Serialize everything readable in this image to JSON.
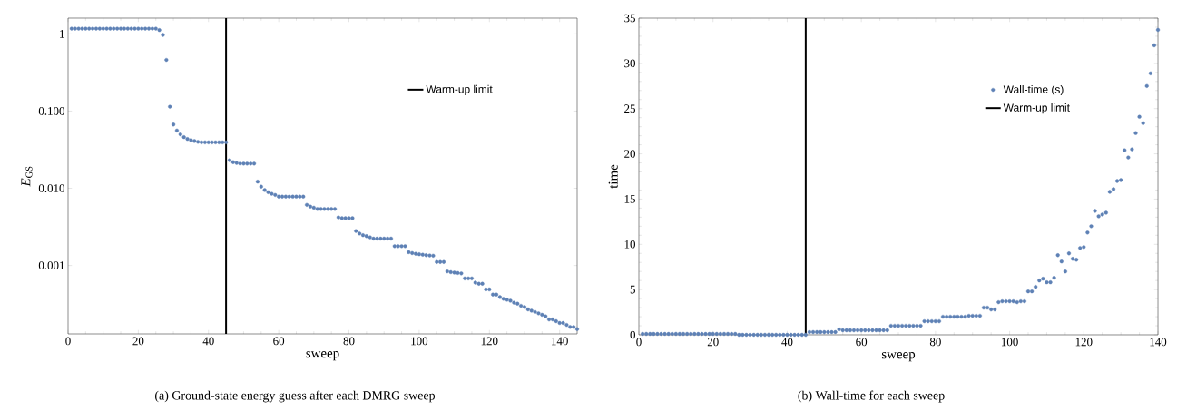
{
  "chart_data": [
    {
      "type": "scatter",
      "xlabel": "sweep",
      "ylabel": "*E*$_{GS}$",
      "log": "y",
      "legend": "top right",
      "xlim": [
        0,
        145
      ],
      "ylim": [
        0.00013,
        1.6
      ],
      "xticks": [
        0,
        20,
        40,
        60,
        80,
        100,
        120,
        140
      ],
      "yticks": [
        1,
        {
          "value": 0.1,
          "label": "0.100"
        },
        {
          "value": 0.01,
          "label": "0.010"
        },
        {
          "value": 0.001,
          "label": "0.001"
        }
      ],
      "x": [
        1,
        2,
        3,
        4,
        5,
        6,
        7,
        8,
        9,
        10,
        11,
        12,
        13,
        14,
        15,
        16,
        17,
        18,
        19,
        20,
        21,
        22,
        23,
        24,
        25,
        26,
        27,
        28,
        29,
        30,
        31,
        32,
        33,
        34,
        35,
        36,
        37,
        38,
        39,
        40,
        41,
        42,
        43,
        44,
        45,
        46,
        47,
        48,
        49,
        50,
        51,
        52,
        53,
        54,
        55,
        56,
        57,
        58,
        59,
        60,
        61,
        62,
        63,
        64,
        65,
        66,
        67,
        68,
        69,
        70,
        71,
        72,
        73,
        74,
        75,
        76,
        77,
        78,
        79,
        80,
        81,
        82,
        83,
        84,
        85,
        86,
        87,
        88,
        89,
        90,
        91,
        92,
        93,
        94,
        95,
        96,
        97,
        98,
        99,
        100,
        101,
        102,
        103,
        104,
        105,
        106,
        107,
        108,
        109,
        110,
        111,
        112,
        113,
        114,
        115,
        116,
        117,
        118,
        119,
        120,
        121,
        122,
        123,
        124,
        125,
        126,
        127,
        128,
        129,
        130,
        131,
        132,
        133,
        134,
        135,
        136,
        137,
        138,
        139,
        140,
        141,
        142,
        143,
        144,
        145
      ],
      "series": [
        {
          "color": "#5e81b5",
          "values": [
            1.17,
            1.17,
            1.17,
            1.17,
            1.17,
            1.17,
            1.17,
            1.17,
            1.17,
            1.17,
            1.17,
            1.17,
            1.17,
            1.17,
            1.17,
            1.17,
            1.17,
            1.17,
            1.17,
            1.17,
            1.17,
            1.17,
            1.17,
            1.17,
            1.17,
            1.12,
            0.97,
            0.46,
            0.114,
            0.067,
            0.056,
            0.05,
            0.046,
            0.0435,
            0.042,
            0.041,
            0.04,
            0.0394,
            0.0394,
            0.0394,
            0.0394,
            0.0394,
            0.0394,
            0.0394,
            0.0394,
            0.0231,
            0.0218,
            0.0213,
            0.0209,
            0.0209,
            0.0209,
            0.0209,
            0.0209,
            0.0122,
            0.0105,
            0.0095,
            0.0089,
            0.0085,
            0.0082,
            0.0078,
            0.0078,
            0.0078,
            0.0078,
            0.0078,
            0.0078,
            0.0078,
            0.0078,
            0.0061,
            0.0058,
            0.0056,
            0.0054,
            0.0054,
            0.0054,
            0.0054,
            0.0054,
            0.0054,
            0.0042,
            0.0041,
            0.0041,
            0.0041,
            0.0041,
            0.0028,
            0.0026,
            0.00247,
            0.0024,
            0.00232,
            0.00223,
            0.00223,
            0.00223,
            0.00223,
            0.00223,
            0.00223,
            0.00178,
            0.00178,
            0.00178,
            0.00178,
            0.00149,
            0.00145,
            0.00142,
            0.0014,
            0.00138,
            0.00136,
            0.00135,
            0.00134,
            0.00111,
            0.00111,
            0.00111,
            0.00084,
            0.00082,
            0.00081,
            0.0008,
            0.00079,
            0.00068,
            0.00068,
            0.00068,
            0.0006,
            0.00058,
            0.00058,
            0.00049,
            0.00049,
            0.00042,
            0.00042,
            0.00039,
            0.00037,
            0.00036,
            0.00035,
            0.00033,
            0.00032,
            0.0003,
            0.00029,
            0.00027,
            0.00026,
            0.00025,
            0.00024,
            0.00023,
            0.00022,
            0.0002,
            0.0002,
            0.00019,
            0.00018,
            0.00018,
            0.00017,
            0.00016,
            0.00016,
            0.00015
          ]
        }
      ],
      "ref_lines": [
        {
          "axis": "x",
          "value": 45,
          "label": "Warm-up limit",
          "color": "#000000"
        }
      ],
      "annotations": [
        "(a) Ground-state energy guess after each DMRG sweep"
      ]
    },
    {
      "type": "scatter",
      "xlabel": "sweep",
      "ylabel": "time",
      "legend": "top right",
      "xlim": [
        0,
        140
      ],
      "ylim": [
        0,
        35
      ],
      "xticks": [
        0,
        20,
        40,
        60,
        80,
        100,
        120,
        140
      ],
      "yticks": [
        0,
        5,
        10,
        15,
        20,
        25,
        30,
        35
      ],
      "x": [
        1,
        2,
        3,
        4,
        5,
        6,
        7,
        8,
        9,
        10,
        11,
        12,
        13,
        14,
        15,
        16,
        17,
        18,
        19,
        20,
        21,
        22,
        23,
        24,
        25,
        26,
        27,
        28,
        29,
        30,
        31,
        32,
        33,
        34,
        35,
        36,
        37,
        38,
        39,
        40,
        41,
        42,
        43,
        44,
        45,
        46,
        47,
        48,
        49,
        50,
        51,
        52,
        53,
        54,
        55,
        56,
        57,
        58,
        59,
        60,
        61,
        62,
        63,
        64,
        65,
        66,
        67,
        68,
        69,
        70,
        71,
        72,
        73,
        74,
        75,
        76,
        77,
        78,
        79,
        80,
        81,
        82,
        83,
        84,
        85,
        86,
        87,
        88,
        89,
        90,
        91,
        92,
        93,
        94,
        95,
        96,
        97,
        98,
        99,
        100,
        101,
        102,
        103,
        104,
        105,
        106,
        107,
        108,
        109,
        110,
        111,
        112,
        113,
        114,
        115,
        116,
        117,
        118,
        119,
        120,
        121,
        122,
        123,
        124,
        125,
        126,
        127,
        128,
        129,
        130,
        131,
        132,
        133,
        134,
        135,
        136,
        137,
        138,
        139,
        140
      ],
      "series": [
        {
          "name": "Wall-time (s)",
          "color": "#5e81b5",
          "values": [
            0.1,
            0.1,
            0.1,
            0.1,
            0.1,
            0.1,
            0.1,
            0.1,
            0.1,
            0.1,
            0.1,
            0.1,
            0.1,
            0.1,
            0.1,
            0.1,
            0.1,
            0.1,
            0.1,
            0.1,
            0.1,
            0.1,
            0.1,
            0.1,
            0.1,
            0.1,
            0,
            0,
            0,
            0,
            0,
            0,
            0,
            0,
            0,
            0,
            0,
            0,
            0,
            0,
            0,
            0,
            0,
            0,
            0,
            0.3,
            0.3,
            0.3,
            0.3,
            0.3,
            0.3,
            0.3,
            0.3,
            0.6,
            0.5,
            0.5,
            0.5,
            0.5,
            0.5,
            0.5,
            0.5,
            0.5,
            0.5,
            0.5,
            0.5,
            0.5,
            0.5,
            1.0,
            1.0,
            1.0,
            1.0,
            1.0,
            1.0,
            1.0,
            1.0,
            1.0,
            1.5,
            1.5,
            1.5,
            1.5,
            1.5,
            2.0,
            2.0,
            2.0,
            2.0,
            2.0,
            2.0,
            2.0,
            2.1,
            2.1,
            2.1,
            2.1,
            3.0,
            3.0,
            2.8,
            2.8,
            3.6,
            3.7,
            3.7,
            3.7,
            3.7,
            3.6,
            3.7,
            3.7,
            4.8,
            4.8,
            5.3,
            6.0,
            6.2,
            5.8,
            5.8,
            6.3,
            8.8,
            8.1,
            7.0,
            9.0,
            8.4,
            8.3,
            9.6,
            9.7,
            11.3,
            12.0,
            13.7,
            13.1,
            13.3,
            13.5,
            15.8,
            16.1,
            17.0,
            17.1,
            20.4,
            19.6,
            20.5,
            22.3,
            24.1,
            23.4,
            27.5,
            28.9,
            32.0,
            33.7
          ]
        }
      ],
      "ref_lines": [
        {
          "axis": "x",
          "value": 45,
          "label": "Warm-up limit",
          "color": "#000000"
        }
      ],
      "annotations": [
        "(b) Wall-time for each sweep"
      ]
    }
  ]
}
